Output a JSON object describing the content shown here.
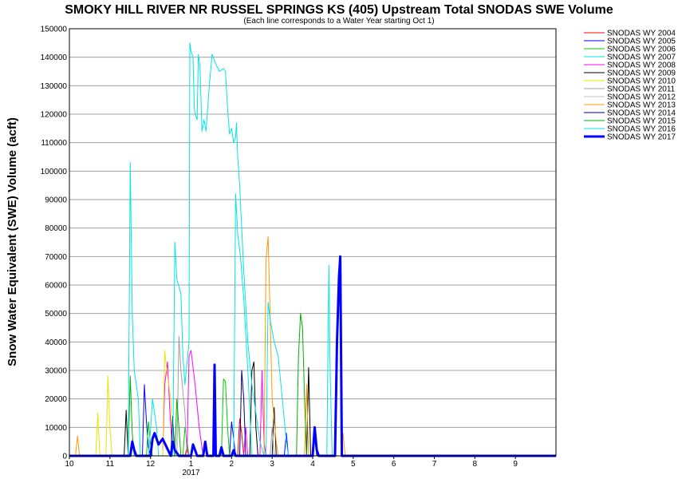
{
  "chart_data": {
    "type": "line",
    "title": "SMOKY HILL RIVER NR RUSSEL SPRINGS KS (405) Upstream Total SNODAS SWE Volume",
    "subtitle": "(Each line corresponds to a Water Year starting Oct 1)",
    "ylabel": "Snow Water Equivalent (SWE) Volume (acft)",
    "xlabel": "",
    "ylim": [
      0,
      150000
    ],
    "yticks": [
      0,
      10000,
      20000,
      30000,
      40000,
      50000,
      60000,
      70000,
      80000,
      90000,
      100000,
      110000,
      120000,
      130000,
      140000,
      150000
    ],
    "xlim": [
      0,
      12
    ],
    "xticks": [
      {
        "x": 0,
        "label": "10"
      },
      {
        "x": 1,
        "label": "11"
      },
      {
        "x": 2,
        "label": "12"
      },
      {
        "x": 3,
        "label": "1"
      },
      {
        "x": 4,
        "label": "2"
      },
      {
        "x": 5,
        "label": "3"
      },
      {
        "x": 6,
        "label": "4"
      },
      {
        "x": 7,
        "label": "5"
      },
      {
        "x": 8,
        "label": "6"
      },
      {
        "x": 9,
        "label": "7"
      },
      {
        "x": 10,
        "label": "8"
      },
      {
        "x": 11,
        "label": "9"
      }
    ],
    "year_label": {
      "x": 3,
      "label": "2017"
    },
    "grid": true,
    "legend_position": "right",
    "series": [
      {
        "name": "SNODAS WY 2004",
        "color": "#ff0000",
        "width": 1,
        "points": [
          [
            0,
            0
          ],
          [
            2.85,
            0
          ],
          [
            2.9,
            3000
          ],
          [
            2.95,
            0
          ],
          [
            4.15,
            0
          ],
          [
            4.2,
            13000
          ],
          [
            4.25,
            8000
          ],
          [
            4.3,
            0
          ],
          [
            12,
            0
          ]
        ]
      },
      {
        "name": "SNODAS WY 2005",
        "color": "#0000ff",
        "width": 1,
        "points": [
          [
            0,
            0
          ],
          [
            1.8,
            0
          ],
          [
            1.85,
            25000
          ],
          [
            1.9,
            12000
          ],
          [
            1.95,
            3000
          ],
          [
            2.0,
            0
          ],
          [
            3.95,
            0
          ],
          [
            4.0,
            12000
          ],
          [
            4.05,
            6000
          ],
          [
            4.1,
            0
          ],
          [
            5.3,
            0
          ],
          [
            5.35,
            8000
          ],
          [
            5.4,
            0
          ],
          [
            12,
            0
          ]
        ]
      },
      {
        "name": "SNODAS WY 2006",
        "color": "#00cc00",
        "width": 1,
        "points": [
          [
            0,
            0
          ],
          [
            1.9,
            0
          ],
          [
            1.95,
            12000
          ],
          [
            2.0,
            4000
          ],
          [
            2.05,
            0
          ],
          [
            2.8,
            0
          ],
          [
            2.85,
            10000
          ],
          [
            2.9,
            5000
          ],
          [
            2.95,
            0
          ],
          [
            3.75,
            0
          ],
          [
            3.8,
            27000
          ],
          [
            3.85,
            26000
          ],
          [
            3.9,
            10000
          ],
          [
            3.95,
            0
          ],
          [
            12,
            0
          ]
        ]
      },
      {
        "name": "SNODAS WY 2007",
        "color": "#00e6e6",
        "width": 1,
        "points": [
          [
            0,
            0
          ],
          [
            1.95,
            0
          ],
          [
            2.0,
            9000
          ],
          [
            2.05,
            20000
          ],
          [
            2.15,
            10000
          ],
          [
            2.2,
            0
          ],
          [
            12,
            0
          ]
        ]
      },
      {
        "name": "SNODAS WY 2008",
        "color": "#ff00ff",
        "width": 1,
        "points": [
          [
            0,
            0
          ],
          [
            2.3,
            0
          ],
          [
            2.35,
            25000
          ],
          [
            2.42,
            33000
          ],
          [
            2.48,
            15000
          ],
          [
            2.55,
            0
          ],
          [
            2.9,
            0
          ],
          [
            2.95,
            35000
          ],
          [
            3.0,
            37000
          ],
          [
            3.1,
            25000
          ],
          [
            3.2,
            10000
          ],
          [
            3.3,
            0
          ],
          [
            4.3,
            0
          ],
          [
            4.35,
            10000
          ],
          [
            4.4,
            0
          ],
          [
            4.7,
            0
          ],
          [
            4.75,
            30000
          ],
          [
            4.8,
            5000
          ],
          [
            4.85,
            0
          ],
          [
            12,
            0
          ]
        ]
      },
      {
        "name": "SNODAS WY 2009",
        "color": "#000000",
        "width": 1,
        "points": [
          [
            0,
            0
          ],
          [
            1.35,
            0
          ],
          [
            1.4,
            16000
          ],
          [
            1.45,
            0
          ],
          [
            4.45,
            0
          ],
          [
            4.5,
            30000
          ],
          [
            4.55,
            33000
          ],
          [
            4.6,
            10000
          ],
          [
            4.65,
            0
          ],
          [
            5.0,
            0
          ],
          [
            5.05,
            17000
          ],
          [
            5.1,
            0
          ],
          [
            5.85,
            0
          ],
          [
            5.9,
            31000
          ],
          [
            5.95,
            0
          ],
          [
            12,
            0
          ]
        ]
      },
      {
        "name": "SNODAS WY 2010",
        "color": "#e6e600",
        "width": 1,
        "points": [
          [
            0,
            0
          ],
          [
            0.65,
            0
          ],
          [
            0.7,
            15000
          ],
          [
            0.75,
            0
          ],
          [
            0.9,
            0
          ],
          [
            0.95,
            28000
          ],
          [
            1.0,
            10000
          ],
          [
            1.05,
            0
          ],
          [
            2.3,
            0
          ],
          [
            2.35,
            37000
          ],
          [
            2.4,
            30000
          ],
          [
            2.5,
            20000
          ],
          [
            2.55,
            0
          ],
          [
            12,
            0
          ]
        ]
      },
      {
        "name": "SNODAS WY 2011",
        "color": "#a0a0a0",
        "width": 1,
        "points": [
          [
            0,
            0
          ],
          [
            2.65,
            0
          ],
          [
            2.7,
            42000
          ],
          [
            2.75,
            30000
          ],
          [
            2.85,
            15000
          ],
          [
            2.9,
            0
          ],
          [
            4.95,
            0
          ],
          [
            5.0,
            10000
          ],
          [
            5.05,
            0
          ],
          [
            12,
            0
          ]
        ]
      },
      {
        "name": "SNODAS WY 2012",
        "color": "#c0c0c0",
        "width": 1,
        "points": [
          [
            0,
            0
          ],
          [
            1.5,
            0
          ],
          [
            1.55,
            6000
          ],
          [
            1.6,
            0
          ],
          [
            12,
            0
          ]
        ]
      },
      {
        "name": "SNODAS WY 2013",
        "color": "#ff9900",
        "width": 1,
        "points": [
          [
            0,
            0
          ],
          [
            0.15,
            0
          ],
          [
            0.2,
            7000
          ],
          [
            0.25,
            0
          ],
          [
            4.8,
            0
          ],
          [
            4.85,
            69000
          ],
          [
            4.9,
            77000
          ],
          [
            4.95,
            50000
          ],
          [
            5.0,
            20000
          ],
          [
            5.1,
            5000
          ],
          [
            5.15,
            0
          ],
          [
            5.8,
            0
          ],
          [
            5.85,
            25000
          ],
          [
            5.9,
            0
          ],
          [
            6.7,
            0
          ],
          [
            6.75,
            8000
          ],
          [
            6.8,
            0
          ],
          [
            12,
            0
          ]
        ]
      },
      {
        "name": "SNODAS WY 2014",
        "color": "#000080",
        "width": 1,
        "points": [
          [
            0,
            0
          ],
          [
            2.5,
            0
          ],
          [
            2.55,
            14000
          ],
          [
            2.6,
            0
          ],
          [
            4.2,
            0
          ],
          [
            4.25,
            30000
          ],
          [
            4.3,
            20000
          ],
          [
            4.35,
            0
          ],
          [
            6.0,
            0
          ],
          [
            6.05,
            8000
          ],
          [
            6.1,
            0
          ],
          [
            12,
            0
          ]
        ]
      },
      {
        "name": "SNODAS WY 2015",
        "color": "#00b000",
        "width": 1,
        "points": [
          [
            0,
            0
          ],
          [
            1.45,
            0
          ],
          [
            1.5,
            28000
          ],
          [
            1.55,
            8000
          ],
          [
            1.6,
            0
          ],
          [
            2.6,
            0
          ],
          [
            2.65,
            20000
          ],
          [
            2.7,
            10000
          ],
          [
            2.75,
            0
          ],
          [
            5.6,
            0
          ],
          [
            5.65,
            35000
          ],
          [
            5.7,
            50000
          ],
          [
            5.75,
            45000
          ],
          [
            5.8,
            20000
          ],
          [
            5.85,
            0
          ],
          [
            12,
            0
          ]
        ]
      },
      {
        "name": "SNODAS WY 2016",
        "color": "#00e6e6",
        "width": 1,
        "points": [
          [
            0,
            0
          ],
          [
            1.45,
            0
          ],
          [
            1.5,
            103000
          ],
          [
            1.55,
            50000
          ],
          [
            1.6,
            30000
          ],
          [
            1.7,
            20000
          ],
          [
            1.75,
            0
          ],
          [
            2.55,
            0
          ],
          [
            2.6,
            75000
          ],
          [
            2.65,
            62000
          ],
          [
            2.75,
            57000
          ],
          [
            2.8,
            35000
          ],
          [
            2.85,
            25000
          ],
          [
            2.95,
            40000
          ],
          [
            2.97,
            145000
          ],
          [
            3.0,
            142000
          ],
          [
            3.05,
            140000
          ],
          [
            3.08,
            122000
          ],
          [
            3.1,
            120000
          ],
          [
            3.15,
            118000
          ],
          [
            3.18,
            141000
          ],
          [
            3.22,
            137000
          ],
          [
            3.27,
            114000
          ],
          [
            3.32,
            118000
          ],
          [
            3.37,
            114000
          ],
          [
            3.45,
            130000
          ],
          [
            3.52,
            141000
          ],
          [
            3.6,
            138000
          ],
          [
            3.7,
            135000
          ],
          [
            3.8,
            136000
          ],
          [
            3.85,
            135000
          ],
          [
            3.9,
            122000
          ],
          [
            3.95,
            113000
          ],
          [
            4.0,
            115000
          ],
          [
            4.05,
            110000
          ],
          [
            4.1,
            112000
          ],
          [
            4.12,
            117000
          ],
          [
            4.15,
            105000
          ],
          [
            4.2,
            95000
          ],
          [
            4.25,
            80000
          ],
          [
            4.3,
            65000
          ],
          [
            4.4,
            40000
          ],
          [
            4.5,
            25000
          ],
          [
            4.6,
            15000
          ],
          [
            4.7,
            5000
          ],
          [
            4.8,
            0
          ],
          [
            4.05,
            0
          ],
          [
            4.1,
            92000
          ],
          [
            4.15,
            78000
          ],
          [
            4.22,
            70000
          ],
          [
            4.3,
            55000
          ],
          [
            4.4,
            30000
          ],
          [
            4.5,
            0
          ],
          [
            4.85,
            0
          ],
          [
            4.9,
            54000
          ],
          [
            4.95,
            48000
          ],
          [
            5.05,
            40000
          ],
          [
            5.15,
            35000
          ],
          [
            5.25,
            20000
          ],
          [
            5.35,
            5000
          ],
          [
            5.4,
            0
          ],
          [
            6.35,
            0
          ],
          [
            6.4,
            67000
          ],
          [
            6.43,
            30000
          ],
          [
            6.48,
            0
          ],
          [
            12,
            0
          ]
        ]
      },
      {
        "name": "SNODAS WY 2017",
        "color": "#0000ff",
        "width": 3,
        "points": [
          [
            0,
            0
          ],
          [
            1.5,
            0
          ],
          [
            1.55,
            5000
          ],
          [
            1.6,
            2000
          ],
          [
            1.65,
            0
          ],
          [
            2.0,
            0
          ],
          [
            2.05,
            6000
          ],
          [
            2.1,
            8000
          ],
          [
            2.2,
            4000
          ],
          [
            2.3,
            6000
          ],
          [
            2.4,
            3000
          ],
          [
            2.5,
            0
          ],
          [
            2.55,
            5000
          ],
          [
            2.6,
            2000
          ],
          [
            2.7,
            0
          ],
          [
            3.0,
            0
          ],
          [
            3.05,
            4000
          ],
          [
            3.1,
            2000
          ],
          [
            3.15,
            0
          ],
          [
            3.3,
            0
          ],
          [
            3.35,
            5000
          ],
          [
            3.4,
            0
          ],
          [
            3.55,
            0
          ],
          [
            3.58,
            32000
          ],
          [
            3.61,
            0
          ],
          [
            3.7,
            0
          ],
          [
            3.75,
            3000
          ],
          [
            3.8,
            0
          ],
          [
            4.0,
            0
          ],
          [
            4.05,
            2000
          ],
          [
            4.1,
            0
          ],
          [
            6.0,
            0
          ],
          [
            6.05,
            10000
          ],
          [
            6.1,
            2000
          ],
          [
            6.15,
            0
          ],
          [
            6.55,
            0
          ],
          [
            6.6,
            40000
          ],
          [
            6.65,
            63000
          ],
          [
            6.68,
            70000
          ],
          [
            6.72,
            0
          ],
          [
            7.5,
            0
          ],
          [
            12,
            0
          ]
        ]
      }
    ]
  }
}
